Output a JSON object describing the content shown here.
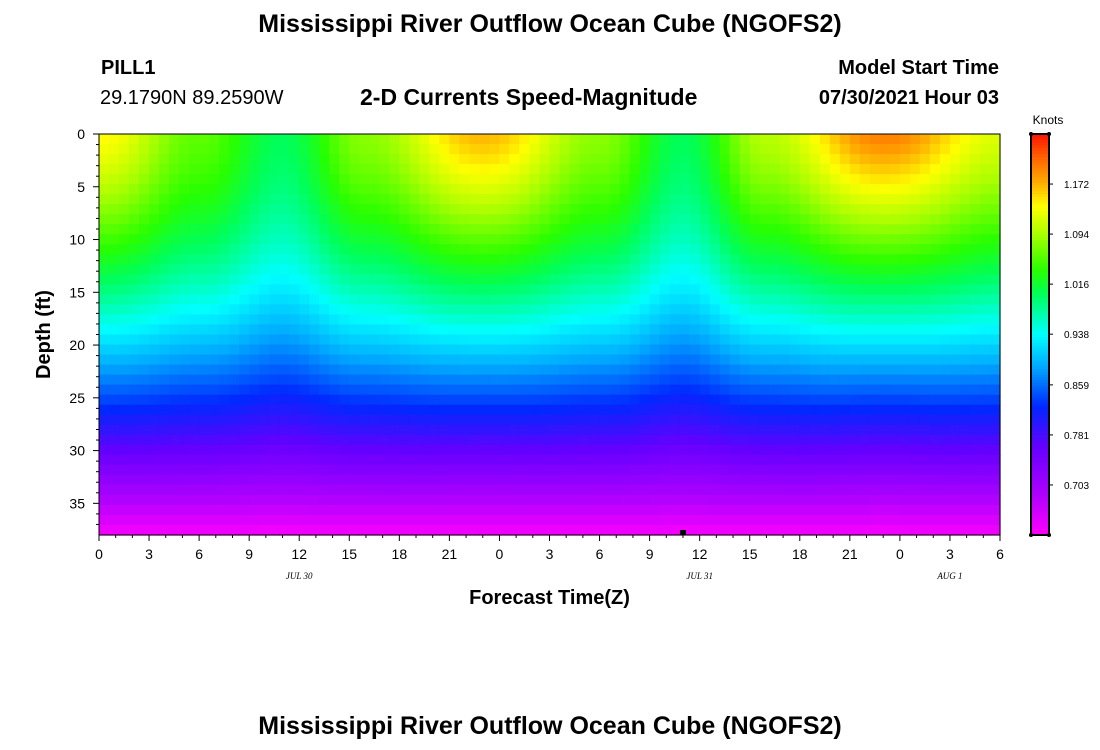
{
  "header": {
    "title": "Mississippi River Outflow Ocean Cube (NGOFS2)",
    "station": "PILL1",
    "coords": "29.1790N  89.2590W",
    "plot_name": "2-D Currents Speed-Magnitude",
    "model_start_label": "Model Start Time",
    "model_start_value": "07/30/2021 Hour 03"
  },
  "footer": {
    "title": "Mississippi River Outflow Ocean Cube (NGOFS2)"
  },
  "chart_data": {
    "type": "heatmap",
    "title": "2-D Currents Speed-Magnitude",
    "xlabel": "Forecast Time(Z)",
    "ylabel": "Depth (ft)",
    "x_hours": [
      0,
      54
    ],
    "x_tick_labels": [
      "0",
      "3",
      "6",
      "9",
      "12",
      "15",
      "18",
      "21",
      "0",
      "3",
      "6",
      "9",
      "12",
      "15",
      "18",
      "21",
      "0",
      "3",
      "6"
    ],
    "date_labels": [
      {
        "text": "JUL 30",
        "hour": 12
      },
      {
        "text": "JUL 31",
        "hour": 36
      },
      {
        "text": "AUG 1",
        "hour": 51
      }
    ],
    "y_ticks": [
      0,
      5,
      10,
      15,
      20,
      25,
      30,
      35
    ],
    "ylim": [
      0,
      38
    ],
    "colorbar": {
      "units": "Knots",
      "ticks": [
        "1.172",
        "1.094",
        "1.016",
        "0.938",
        "0.859",
        "0.781",
        "0.703"
      ],
      "range": [
        0.625,
        1.25
      ]
    },
    "surface_speed_knots": [
      {
        "hour": 0,
        "value": 1.14
      },
      {
        "hour": 6,
        "value": 1.06
      },
      {
        "hour": 11,
        "value": 1.0
      },
      {
        "hour": 16,
        "value": 1.08
      },
      {
        "hour": 23,
        "value": 1.17
      },
      {
        "hour": 30,
        "value": 1.08
      },
      {
        "hour": 35,
        "value": 1.0
      },
      {
        "hour": 40,
        "value": 1.1
      },
      {
        "hour": 47,
        "value": 1.2
      },
      {
        "hour": 54,
        "value": 1.12
      }
    ],
    "bottom_speed_knots": 0.63,
    "marker_hour": 35
  }
}
